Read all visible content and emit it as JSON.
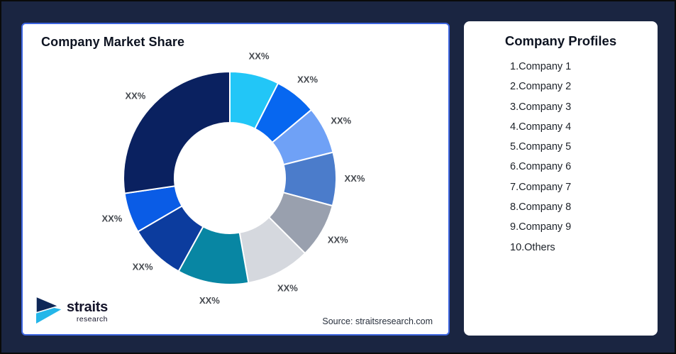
{
  "background": {
    "color": "#1a2541",
    "frame_color": "#0a0a0a"
  },
  "left_card": {
    "title": "Company Market Share",
    "source": "Source: straitsresearch.com",
    "border_color": "#3c64de"
  },
  "logo": {
    "wordmark": "straits",
    "subtext": "research",
    "navy": "#0e2757",
    "cyan": "#24b6e9"
  },
  "right_card": {
    "title": "Company Profiles",
    "items": [
      "1.Company 1",
      "2.Company 2",
      "3.Company 3",
      "4.Company 4",
      "5.Company 5",
      "6.Company 6",
      "7.Company 7",
      "8.Company 8",
      "9.Company 9",
      "10.Others"
    ]
  },
  "chart_data": {
    "type": "pie",
    "subtype": "donut",
    "title": "Company Market Share",
    "legend_position": "none",
    "inner_radius_ratio": 0.52,
    "start_angle_deg": 0,
    "direction": "clockwise",
    "segments": [
      {
        "label": "XX%",
        "percent": 7.5,
        "color": "#22c6f7"
      },
      {
        "label": "XX%",
        "percent": 6.4,
        "color": "#0767f0"
      },
      {
        "label": "XX%",
        "percent": 7.2,
        "color": "#6fa1f6"
      },
      {
        "label": "XX%",
        "percent": 8.1,
        "color": "#4b7ccb"
      },
      {
        "label": "XX%",
        "percent": 8.3,
        "color": "#99a0ae"
      },
      {
        "label": "XX%",
        "percent": 9.7,
        "color": "#d5d8de"
      },
      {
        "label": "XX%",
        "percent": 10.8,
        "color": "#0886a3"
      },
      {
        "label": "XX%",
        "percent": 8.6,
        "color": "#0c3c9e"
      },
      {
        "label": "XX%",
        "percent": 6.1,
        "color": "#0a5ce6"
      },
      {
        "label": "XX%",
        "percent": 27.3,
        "color": "#0a2160"
      }
    ]
  }
}
